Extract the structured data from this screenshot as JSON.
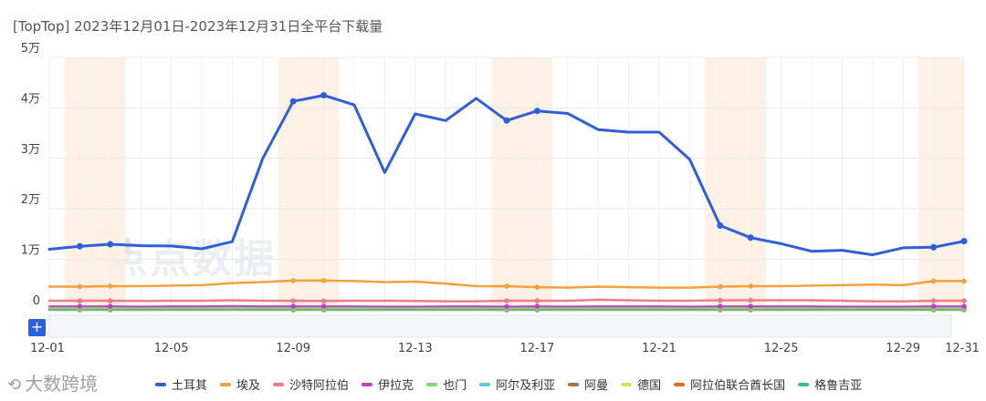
{
  "title": "[TopTop]  2023年12月01日-2023年12月31日全平台下载量",
  "brand": {
    "mark": "⟲",
    "label": "大数跨境"
  },
  "watermark": "点点数据",
  "zoom_label": "+",
  "chart_data": {
    "type": "line",
    "title": "[TopTop]  2023年12月01日-2023年12月31日全平台下载量",
    "x": [
      "12-01",
      "12-02",
      "12-03",
      "12-04",
      "12-05",
      "12-06",
      "12-07",
      "12-08",
      "12-09",
      "12-10",
      "12-11",
      "12-12",
      "12-13",
      "12-14",
      "12-15",
      "12-16",
      "12-17",
      "12-18",
      "12-19",
      "12-20",
      "12-21",
      "12-22",
      "12-23",
      "12-24",
      "12-25",
      "12-26",
      "12-27",
      "12-28",
      "12-29",
      "12-30",
      "12-31"
    ],
    "x_tick_labels": [
      "12-01",
      "12-05",
      "12-09",
      "12-13",
      "12-17",
      "12-21",
      "12-25",
      "12-29",
      "12-31"
    ],
    "y_ticks": [
      {
        "value": 0,
        "label": "0"
      },
      {
        "value": 10000,
        "label": "1万"
      },
      {
        "value": 20000,
        "label": "2万"
      },
      {
        "value": 30000,
        "label": "3万"
      },
      {
        "value": 40000,
        "label": "4万"
      },
      {
        "value": 50000,
        "label": "5万"
      }
    ],
    "ylim": [
      0,
      50000
    ],
    "grid": true,
    "legend_position": "bottom",
    "highlight_bands": [
      [
        "12-02",
        "12-03"
      ],
      [
        "12-09",
        "12-10"
      ],
      [
        "12-16",
        "12-17"
      ],
      [
        "12-23",
        "12-24"
      ],
      [
        "12-30",
        "12-31"
      ]
    ],
    "series": [
      {
        "name": "土耳其",
        "color": "#2f5fd8",
        "width": 3,
        "values": [
          12000,
          12600,
          13000,
          12700,
          12650,
          12100,
          13500,
          30000,
          41300,
          42500,
          40600,
          27200,
          38800,
          37500,
          41900,
          37500,
          39400,
          38900,
          35700,
          35200,
          35200,
          29800,
          16700,
          14300,
          13100,
          11600,
          11800,
          10900,
          12300,
          12400,
          13600
        ]
      },
      {
        "name": "埃及",
        "color": "#f5a03a",
        "width": 2.5,
        "values": [
          4600,
          4600,
          4700,
          4700,
          4800,
          4900,
          5300,
          5500,
          5800,
          5800,
          5700,
          5500,
          5600,
          5200,
          4700,
          4700,
          4500,
          4400,
          4600,
          4500,
          4400,
          4400,
          4600,
          4700,
          4700,
          4800,
          4900,
          5000,
          4900,
          5700,
          5700
        ]
      },
      {
        "name": "沙特阿拉伯",
        "color": "#ef7b84",
        "width": 2.5,
        "values": [
          1800,
          1800,
          1800,
          1750,
          1800,
          1800,
          1900,
          1800,
          1800,
          1750,
          1800,
          1800,
          1750,
          1700,
          1700,
          1800,
          1800,
          1800,
          2000,
          1900,
          1800,
          1800,
          1900,
          1900,
          1900,
          1900,
          1800,
          1700,
          1700,
          1800,
          1800
        ]
      },
      {
        "name": "伊拉克",
        "color": "#c63cc8",
        "width": 2,
        "values": [
          700,
          700,
          700,
          650,
          700,
          700,
          750,
          700,
          700,
          700,
          700,
          650,
          650,
          700,
          700,
          650,
          700,
          650,
          700,
          700,
          700,
          650,
          700,
          700,
          700,
          700,
          650,
          650,
          650,
          700,
          700
        ]
      },
      {
        "name": "也门",
        "color": "#7fdb6a",
        "width": 2,
        "values": [
          400,
          400,
          400,
          400,
          400,
          400,
          450,
          400,
          400,
          400,
          400,
          400,
          400,
          400,
          400,
          400,
          400,
          400,
          400,
          400,
          400,
          400,
          400,
          400,
          400,
          400,
          400,
          400,
          400,
          400,
          400
        ]
      },
      {
        "name": "阿尔及利亚",
        "color": "#55cfe6",
        "width": 2,
        "values": [
          300,
          300,
          300,
          300,
          300,
          300,
          300,
          300,
          300,
          300,
          300,
          300,
          300,
          300,
          300,
          300,
          300,
          300,
          300,
          300,
          300,
          300,
          300,
          300,
          300,
          300,
          300,
          300,
          300,
          300,
          300
        ]
      },
      {
        "name": "阿曼",
        "color": "#a8763e",
        "width": 2,
        "values": [
          200,
          200,
          200,
          200,
          200,
          200,
          200,
          200,
          200,
          200,
          200,
          200,
          200,
          200,
          200,
          200,
          200,
          200,
          200,
          200,
          200,
          200,
          200,
          200,
          200,
          200,
          200,
          200,
          200,
          200,
          200
        ]
      },
      {
        "name": "德国",
        "color": "#d8e35a",
        "width": 2,
        "values": [
          150,
          150,
          150,
          150,
          150,
          150,
          150,
          150,
          150,
          150,
          150,
          150,
          150,
          150,
          150,
          150,
          150,
          150,
          150,
          150,
          150,
          150,
          150,
          150,
          150,
          150,
          150,
          150,
          150,
          150,
          150
        ]
      },
      {
        "name": "阿拉伯联合酋长国",
        "color": "#e8681e",
        "width": 2,
        "values": [
          100,
          100,
          100,
          100,
          100,
          100,
          100,
          100,
          100,
          100,
          100,
          100,
          100,
          100,
          100,
          100,
          100,
          100,
          100,
          100,
          100,
          100,
          100,
          100,
          100,
          100,
          100,
          100,
          100,
          100,
          100
        ]
      },
      {
        "name": "格鲁吉亚",
        "color": "#3fb8a0",
        "width": 2.5,
        "values": [
          0,
          0,
          0,
          0,
          0,
          0,
          0,
          0,
          0,
          0,
          0,
          0,
          0,
          0,
          0,
          0,
          0,
          0,
          0,
          0,
          0,
          0,
          0,
          0,
          0,
          0,
          0,
          0,
          0,
          0,
          0
        ]
      }
    ]
  }
}
